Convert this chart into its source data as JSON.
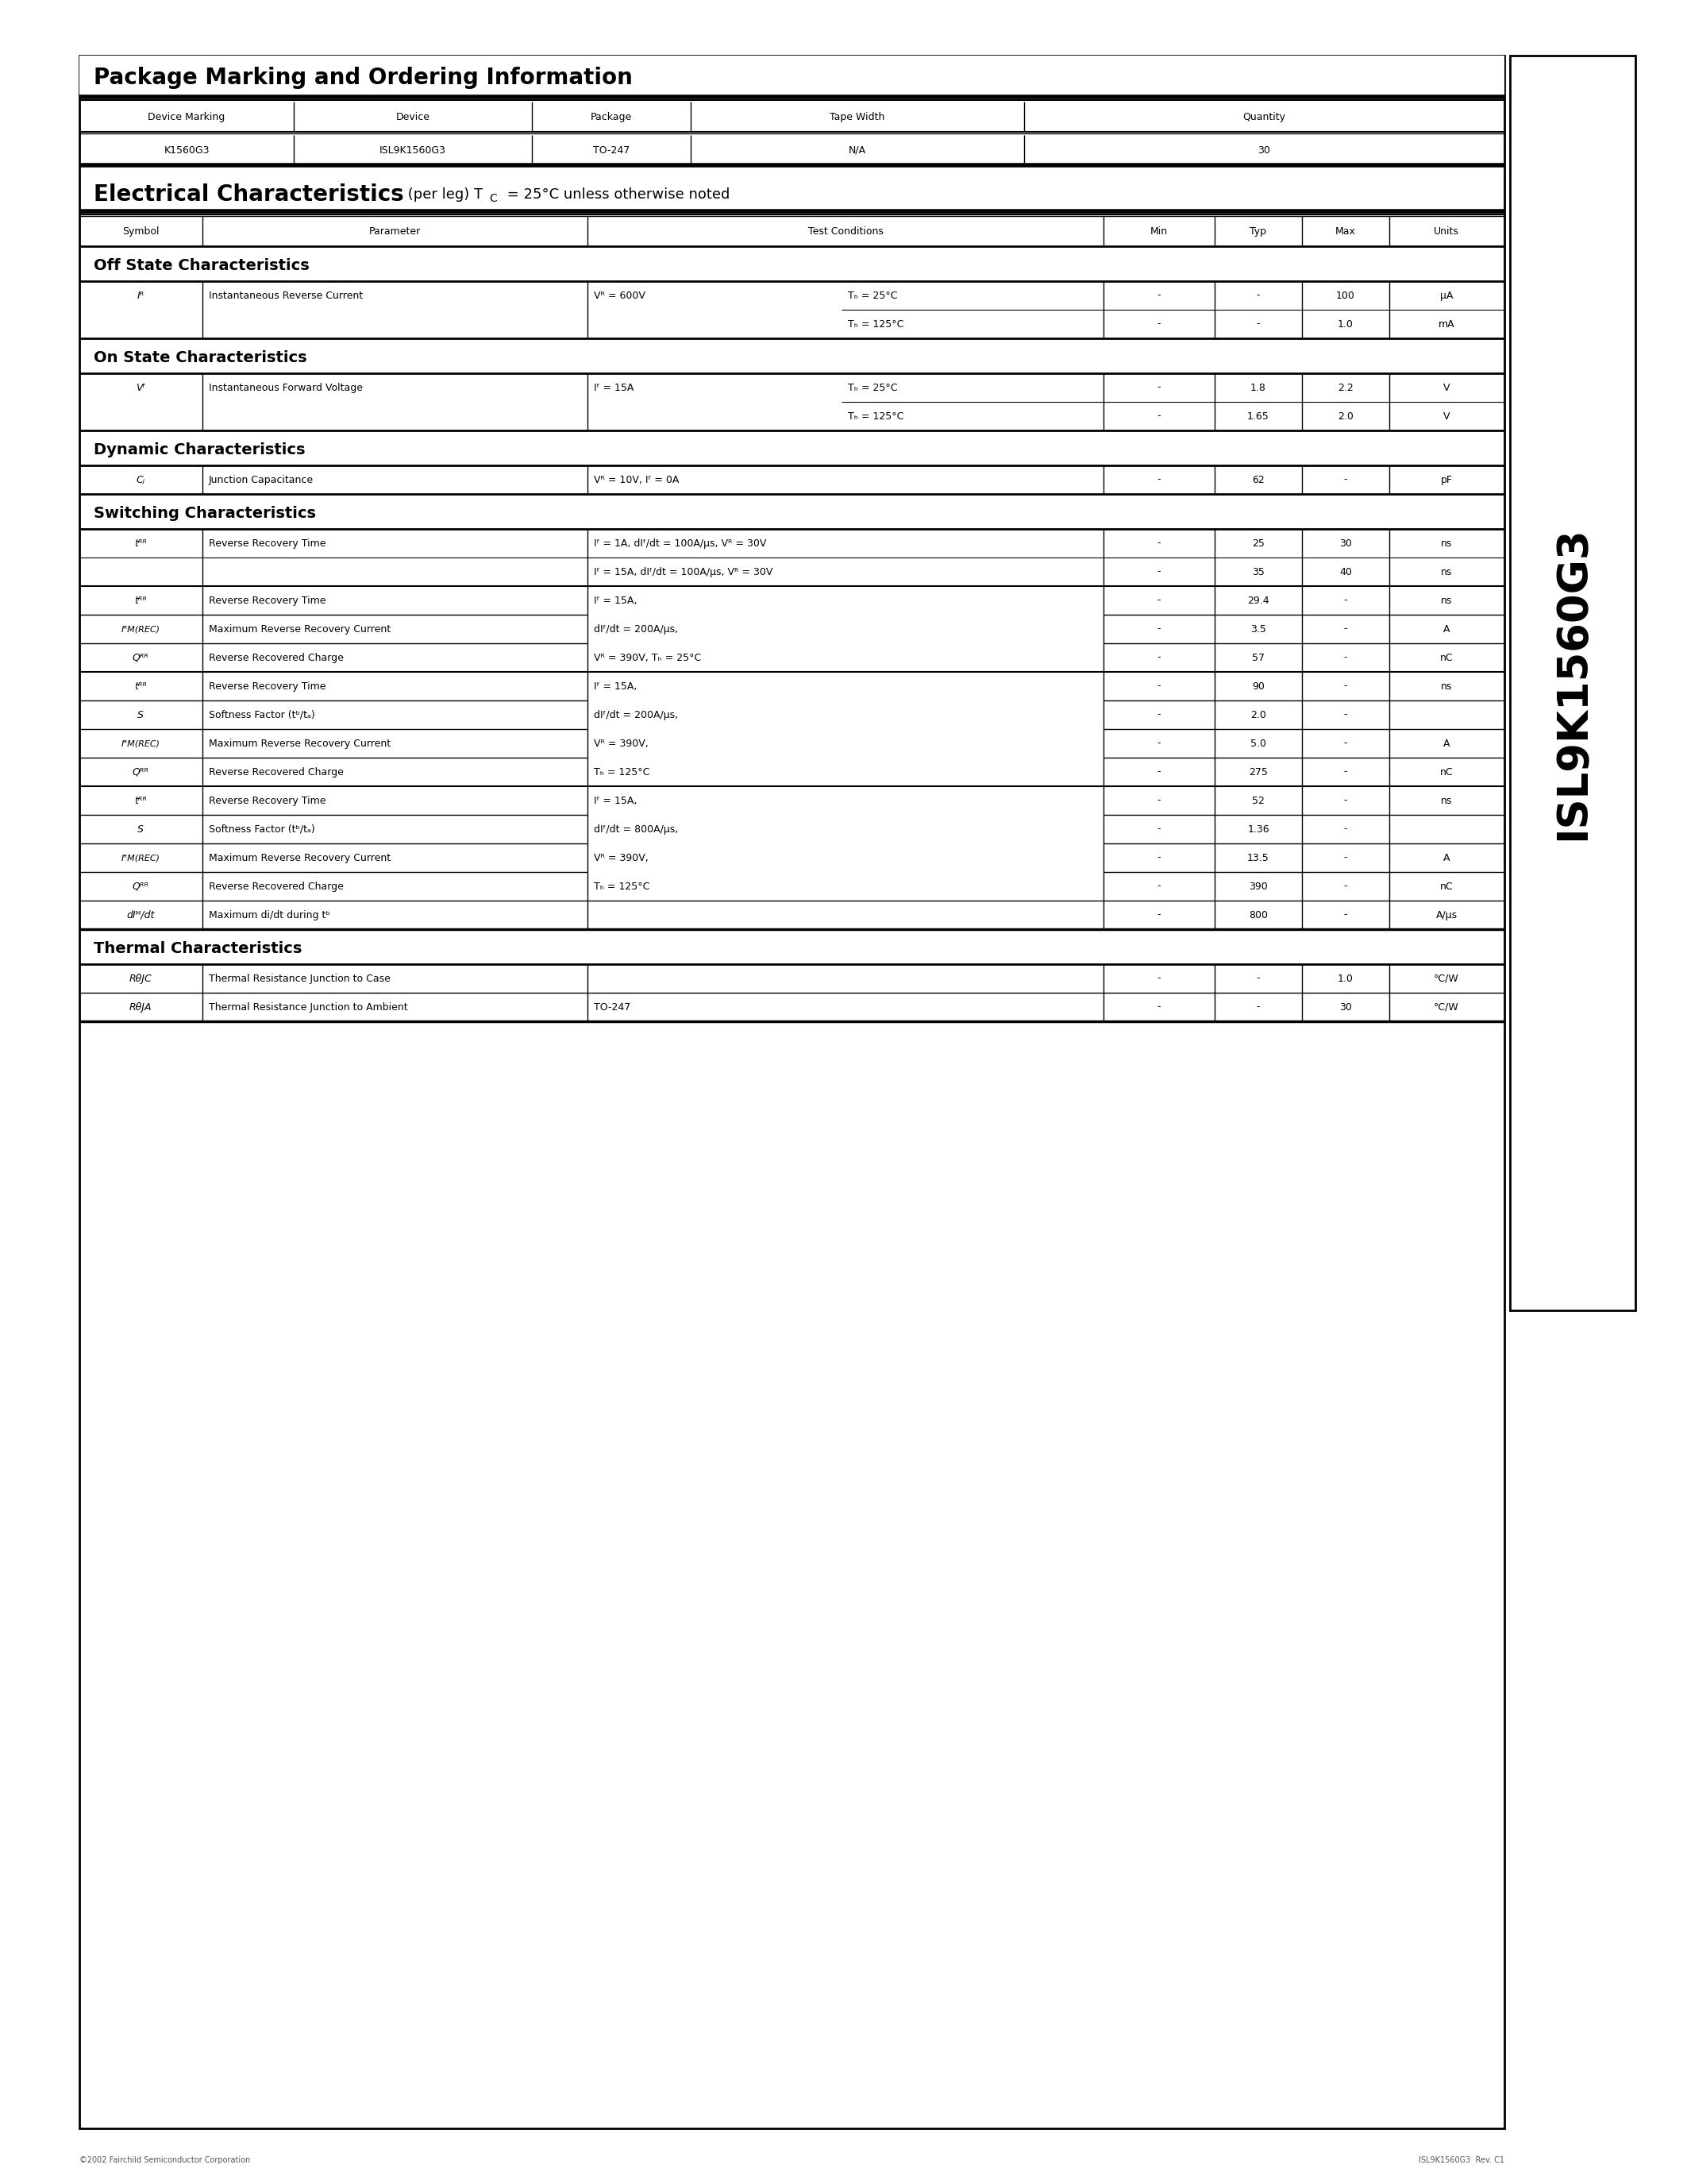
{
  "footer_left": "©2002 Fairchild Semiconductor Corporation",
  "footer_right": "ISL9K1560G3  Rev. C1",
  "sidebar_text": "ISL9K1560G3",
  "section1_title": "Package Marking and Ordering Information",
  "pkg_headers": [
    "Device Marking",
    "Device",
    "Package",
    "Tape Width",
    "Quantity"
  ],
  "pkg_data": [
    "K1560G3",
    "ISL9K1560G3",
    "TO-247",
    "N/A",
    "30"
  ],
  "elec_headers": [
    "Symbol",
    "Parameter",
    "Test Conditions",
    "Min",
    "Typ",
    "Max",
    "Units"
  ],
  "subsection_off": "Off State Characteristics",
  "subsection_on": "On State Characteristics",
  "subsection_dynamic": "Dynamic Characteristics",
  "subsection_switching": "Switching Characteristics",
  "subsection_thermal": "Thermal Characteristics"
}
